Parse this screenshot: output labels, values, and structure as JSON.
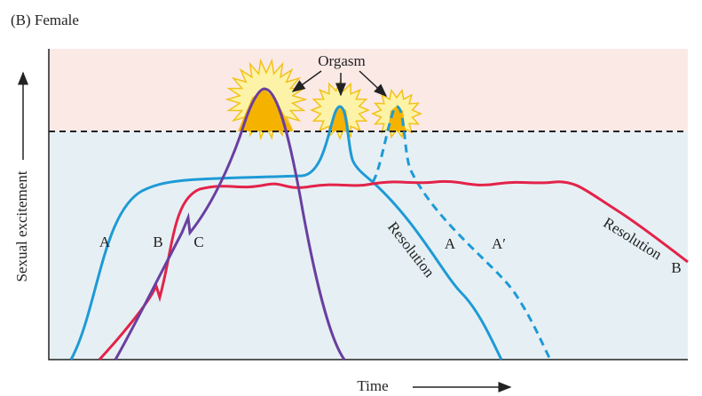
{
  "header": {
    "title": "(B) Female"
  },
  "axes": {
    "y_label": "Sexual excitement",
    "x_label": "Time"
  },
  "annotations": {
    "orgasm": "Orgasm"
  },
  "curve_labels": [
    "A",
    "B",
    "C",
    "A",
    "A′"
  ],
  "resolution_labels": [
    "Resolution",
    "Resolution"
  ],
  "end_label": "B"
}
